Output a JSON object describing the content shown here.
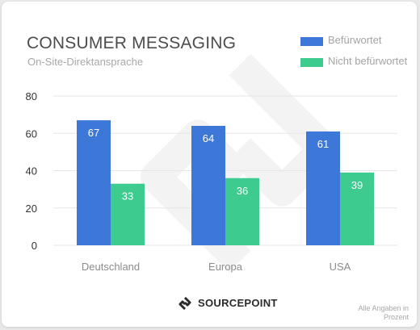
{
  "title": "CONSUMER MESSAGING",
  "subtitle": "On-Site-Direktansprache",
  "legend": [
    {
      "label": "Befürwortet",
      "color": "#3d78d8"
    },
    {
      "label": "Nicht befürwortet",
      "color": "#3ecb8f"
    }
  ],
  "brand": {
    "name": "SOURCEPOINT",
    "icon": "sourcepoint-logo-icon"
  },
  "footnote": "Alle Angaben in Prozent",
  "colors": {
    "grid": "#e6e6e6",
    "tick_text": "#333333",
    "category_text": "#8c8c8c",
    "bar_label": "#ffffff"
  },
  "chart_data": {
    "type": "bar",
    "categories": [
      "Deutschland",
      "Europa",
      "USA"
    ],
    "series": [
      {
        "name": "Befürwortet",
        "values": [
          67,
          64,
          61
        ]
      },
      {
        "name": "Nicht befürwortet",
        "values": [
          33,
          36,
          39
        ]
      }
    ],
    "ylim": [
      0,
      80
    ],
    "yticks": [
      0,
      20,
      40,
      60,
      80
    ],
    "grid": true,
    "legend_position": "top-right",
    "data_labels": true
  }
}
